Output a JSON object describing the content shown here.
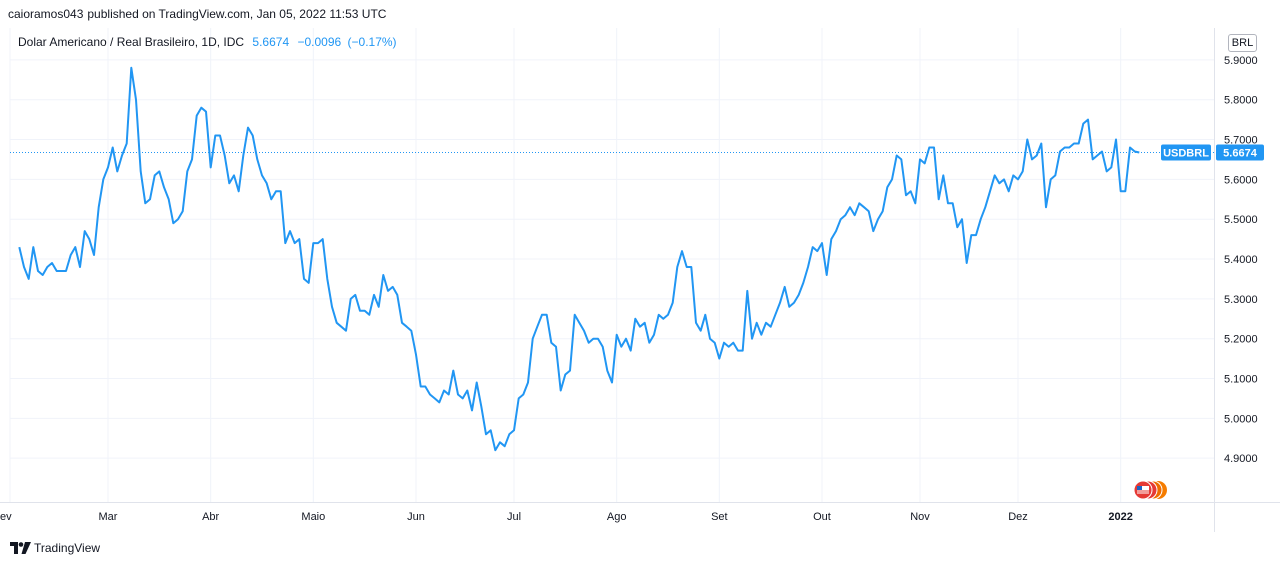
{
  "header": {
    "author": "caioramos043",
    "published_text": "published on TradingView.com, Jan 05, 2022 11:53 UTC"
  },
  "legend": {
    "symbol_title": "Dolar Americano / Real Brasileiro, 1D, IDC",
    "last_price": "5.6674",
    "change": "−0.0096",
    "change_pct": "(−0.17%)"
  },
  "currency_button": "BRL",
  "footer": {
    "brand": "TradingView"
  },
  "colors": {
    "line": "#2196f3",
    "grid": "#f0f3fa",
    "axis_text": "#131722",
    "badge_bg": "#2196f3",
    "flag_red": "#e53935",
    "flag_orange": "#f57c00"
  },
  "chart_data": {
    "type": "line",
    "title": "Dolar Americano / Real Brasileiro, 1D, IDC",
    "xlabel": "",
    "ylabel": "",
    "ylim": [
      4.79,
      5.98
    ],
    "xlim": [
      -2,
      256
    ],
    "grid": true,
    "y_ticks": [
      "5.9000",
      "5.8000",
      "5.7000",
      "5.6000",
      "5.5000",
      "5.4000",
      "5.3000",
      "5.2000",
      "5.1000",
      "5.0000",
      "4.9000"
    ],
    "x_ticks": [
      {
        "label": "ev",
        "x": -2
      },
      {
        "label": "Mar",
        "x": 19
      },
      {
        "label": "Abr",
        "x": 41
      },
      {
        "label": "Maio",
        "x": 63
      },
      {
        "label": "Jun",
        "x": 85
      },
      {
        "label": "Jul",
        "x": 106
      },
      {
        "label": "Ago",
        "x": 128
      },
      {
        "label": "Set",
        "x": 150
      },
      {
        "label": "Out",
        "x": 172
      },
      {
        "label": "Nov",
        "x": 193
      },
      {
        "label": "Dez",
        "x": 214
      },
      {
        "label": "2022",
        "x": 236
      }
    ],
    "series": [
      {
        "name": "USDBRL",
        "last_label": "USDBRL",
        "last_value": "5.6674",
        "last": 5.6674,
        "values": [
          5.43,
          5.38,
          5.35,
          5.43,
          5.37,
          5.36,
          5.38,
          5.39,
          5.37,
          5.37,
          5.37,
          5.41,
          5.43,
          5.38,
          5.47,
          5.45,
          5.41,
          5.53,
          5.6,
          5.63,
          5.68,
          5.62,
          5.66,
          5.69,
          5.88,
          5.8,
          5.62,
          5.54,
          5.55,
          5.61,
          5.62,
          5.58,
          5.55,
          5.49,
          5.5,
          5.52,
          5.62,
          5.65,
          5.76,
          5.78,
          5.77,
          5.63,
          5.71,
          5.71,
          5.66,
          5.59,
          5.61,
          5.57,
          5.66,
          5.73,
          5.71,
          5.65,
          5.61,
          5.59,
          5.55,
          5.57,
          5.57,
          5.44,
          5.47,
          5.44,
          5.45,
          5.35,
          5.34,
          5.44,
          5.44,
          5.45,
          5.35,
          5.28,
          5.24,
          5.23,
          5.22,
          5.3,
          5.31,
          5.27,
          5.27,
          5.26,
          5.31,
          5.28,
          5.36,
          5.32,
          5.33,
          5.31,
          5.24,
          5.23,
          5.22,
          5.16,
          5.08,
          5.08,
          5.06,
          5.05,
          5.04,
          5.07,
          5.06,
          5.12,
          5.06,
          5.05,
          5.07,
          5.02,
          5.09,
          5.03,
          4.96,
          4.97,
          4.92,
          4.94,
          4.93,
          4.96,
          4.97,
          5.05,
          5.06,
          5.09,
          5.2,
          5.23,
          5.26,
          5.26,
          5.19,
          5.18,
          5.07,
          5.11,
          5.12,
          5.26,
          5.24,
          5.22,
          5.19,
          5.2,
          5.2,
          5.18,
          5.12,
          5.09,
          5.21,
          5.18,
          5.2,
          5.17,
          5.25,
          5.23,
          5.24,
          5.19,
          5.21,
          5.26,
          5.25,
          5.26,
          5.29,
          5.38,
          5.42,
          5.38,
          5.38,
          5.24,
          5.22,
          5.26,
          5.2,
          5.19,
          5.15,
          5.19,
          5.18,
          5.19,
          5.17,
          5.17,
          5.32,
          5.2,
          5.24,
          5.21,
          5.24,
          5.23,
          5.26,
          5.29,
          5.33,
          5.28,
          5.29,
          5.31,
          5.34,
          5.38,
          5.43,
          5.42,
          5.44,
          5.36,
          5.45,
          5.47,
          5.5,
          5.51,
          5.53,
          5.51,
          5.54,
          5.53,
          5.52,
          5.47,
          5.5,
          5.52,
          5.58,
          5.6,
          5.66,
          5.65,
          5.56,
          5.57,
          5.54,
          5.65,
          5.64,
          5.68,
          5.68,
          5.55,
          5.61,
          5.54,
          5.54,
          5.48,
          5.5,
          5.39,
          5.46,
          5.46,
          5.5,
          5.53,
          5.57,
          5.61,
          5.59,
          5.6,
          5.57,
          5.61,
          5.6,
          5.62,
          5.7,
          5.65,
          5.66,
          5.69,
          5.53,
          5.6,
          5.61,
          5.67,
          5.68,
          5.68,
          5.69,
          5.69,
          5.74,
          5.75,
          5.65,
          5.66,
          5.67,
          5.62,
          5.63,
          5.7,
          5.57,
          5.57,
          5.68,
          5.67,
          5.6674
        ]
      }
    ]
  }
}
